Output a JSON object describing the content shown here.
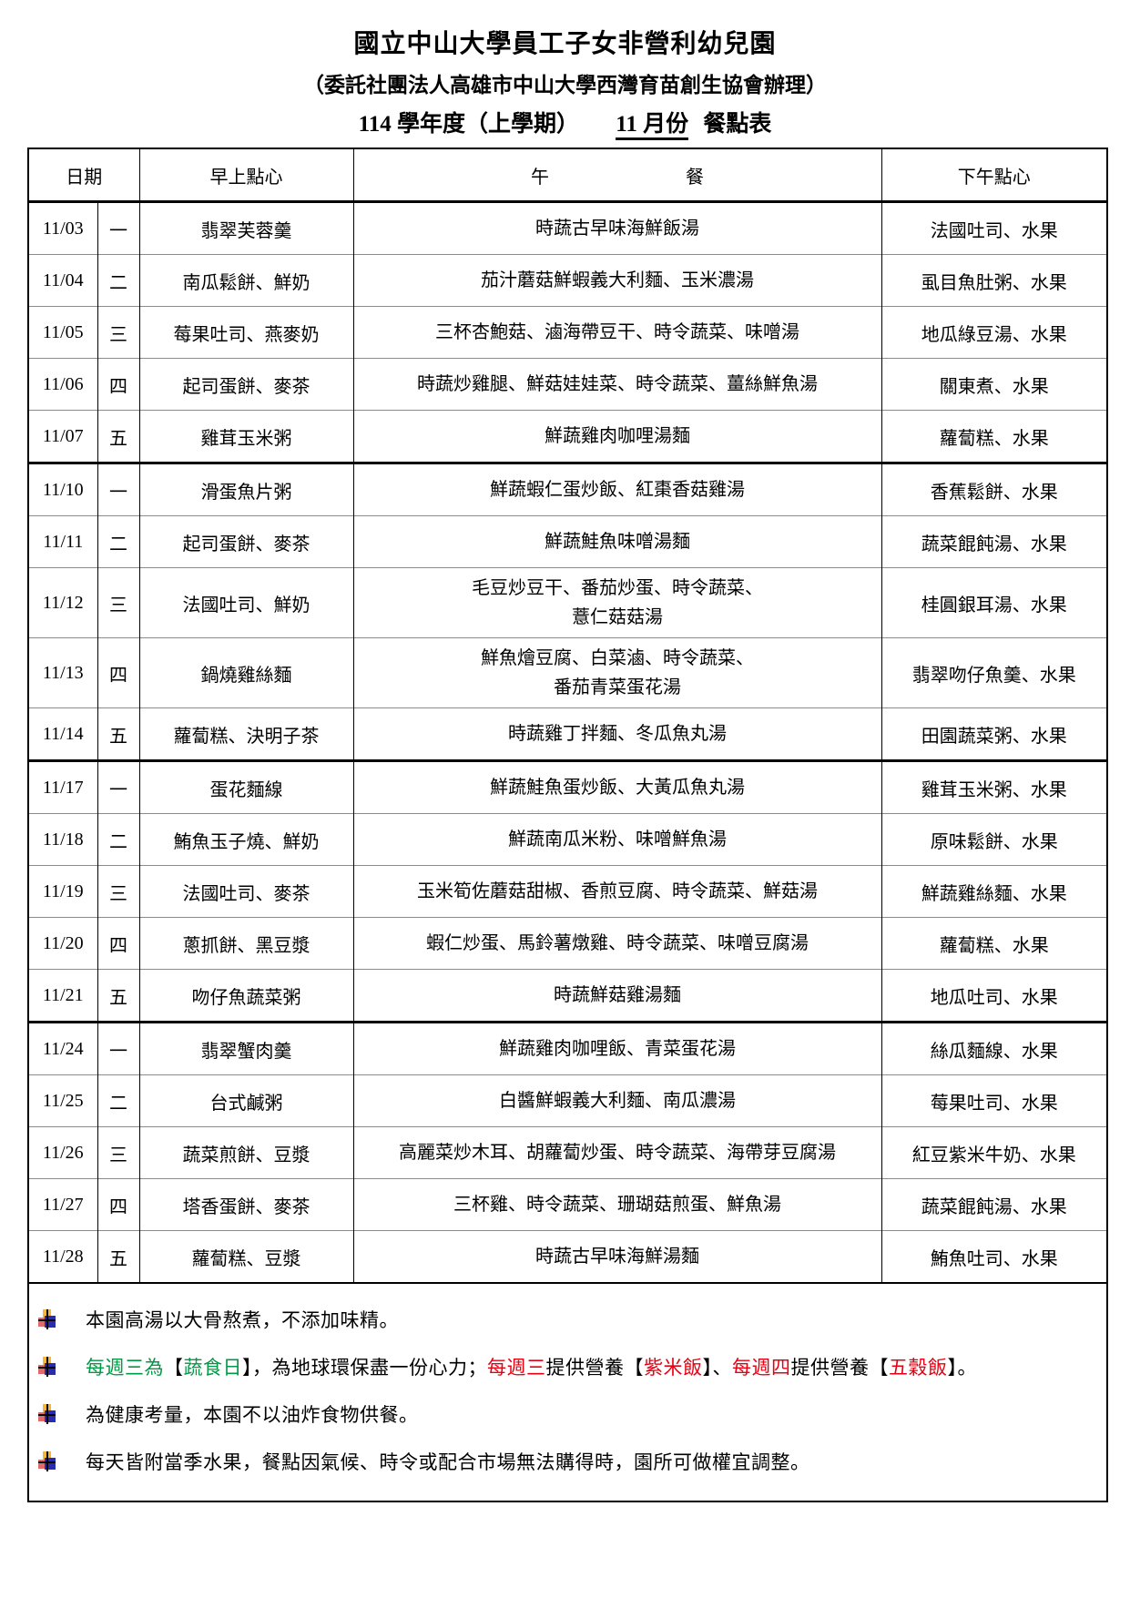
{
  "page": {
    "title": "國立中山大學員工子女非營利幼兒園",
    "subtitle": "（委託社團法人高雄市中山大學西灣育苗創生協會辦理）",
    "term": "114 學年度（上學期）",
    "month": "11 月份",
    "doc_type": "餐點表"
  },
  "colors": {
    "black": "#000000",
    "green": "#009944",
    "red": "#e60012"
  },
  "table": {
    "headers": {
      "date": "日期",
      "morning_snack": "早上點心",
      "lunch_char1": "午",
      "lunch_char2": "餐",
      "afternoon_snack": "下午點心"
    },
    "rows": [
      {
        "date": "11/03",
        "weekday": "一",
        "morning": "翡翠芙蓉羹",
        "lunch": [
          "時蔬古早味海鮮飯湯"
        ],
        "afternoon": "法國吐司、水果",
        "week_end": false
      },
      {
        "date": "11/04",
        "weekday": "二",
        "morning": "南瓜鬆餅、鮮奶",
        "lunch": [
          "茄汁蘑菇鮮蝦義大利麵、玉米濃湯"
        ],
        "afternoon": "虱目魚肚粥、水果",
        "week_end": false
      },
      {
        "date": "11/05",
        "weekday": "三",
        "morning": "莓果吐司、燕麥奶",
        "lunch": [
          "三杯杏鮑菇、滷海帶豆干、時令蔬菜、味噌湯"
        ],
        "afternoon": "地瓜綠豆湯、水果",
        "week_end": false
      },
      {
        "date": "11/06",
        "weekday": "四",
        "morning": "起司蛋餅、麥茶",
        "lunch": [
          "時蔬炒雞腿、鮮菇娃娃菜、時令蔬菜、薑絲鮮魚湯"
        ],
        "afternoon": "關東煮、水果",
        "week_end": false
      },
      {
        "date": "11/07",
        "weekday": "五",
        "morning": "雞茸玉米粥",
        "lunch": [
          "鮮蔬雞肉咖哩湯麵"
        ],
        "afternoon": "蘿蔔糕、水果",
        "week_end": true
      },
      {
        "date": "11/10",
        "weekday": "一",
        "morning": "滑蛋魚片粥",
        "lunch": [
          "鮮蔬蝦仁蛋炒飯、紅棗香菇雞湯"
        ],
        "afternoon": "香蕉鬆餅、水果",
        "week_end": false
      },
      {
        "date": "11/11",
        "weekday": "二",
        "morning": "起司蛋餅、麥茶",
        "lunch": [
          "鮮蔬鮭魚味噌湯麵"
        ],
        "afternoon": "蔬菜餛飩湯、水果",
        "week_end": false
      },
      {
        "date": "11/12",
        "weekday": "三",
        "morning": "法國吐司、鮮奶",
        "lunch": [
          "毛豆炒豆干、番茄炒蛋、時令蔬菜、",
          "薏仁菇菇湯"
        ],
        "afternoon": "桂圓銀耳湯、水果",
        "week_end": false
      },
      {
        "date": "11/13",
        "weekday": "四",
        "morning": "鍋燒雞絲麵",
        "lunch": [
          "鮮魚燴豆腐、白菜滷、時令蔬菜、",
          "番茄青菜蛋花湯"
        ],
        "afternoon": "翡翠吻仔魚羹、水果",
        "week_end": false
      },
      {
        "date": "11/14",
        "weekday": "五",
        "morning": "蘿蔔糕、決明子茶",
        "lunch": [
          "時蔬雞丁拌麵、冬瓜魚丸湯"
        ],
        "afternoon": "田園蔬菜粥、水果",
        "week_end": true
      },
      {
        "date": "11/17",
        "weekday": "一",
        "morning": "蛋花麵線",
        "lunch": [
          "鮮蔬鮭魚蛋炒飯、大黃瓜魚丸湯"
        ],
        "afternoon": "雞茸玉米粥、水果",
        "week_end": false
      },
      {
        "date": "11/18",
        "weekday": "二",
        "morning": "鮪魚玉子燒、鮮奶",
        "lunch": [
          "鮮蔬南瓜米粉、味噌鮮魚湯"
        ],
        "afternoon": "原味鬆餅、水果",
        "week_end": false
      },
      {
        "date": "11/19",
        "weekday": "三",
        "morning": "法國吐司、麥茶",
        "lunch": [
          "玉米筍佐蘑菇甜椒、香煎豆腐、時令蔬菜、鮮菇湯"
        ],
        "afternoon": "鮮蔬雞絲麵、水果",
        "week_end": false
      },
      {
        "date": "11/20",
        "weekday": "四",
        "morning": "蔥抓餅、黑豆漿",
        "lunch": [
          "蝦仁炒蛋、馬鈴薯燉雞、時令蔬菜、味噌豆腐湯"
        ],
        "afternoon": "蘿蔔糕、水果",
        "week_end": false
      },
      {
        "date": "11/21",
        "weekday": "五",
        "morning": "吻仔魚蔬菜粥",
        "lunch": [
          "時蔬鮮菇雞湯麵"
        ],
        "afternoon": "地瓜吐司、水果",
        "week_end": true
      },
      {
        "date": "11/24",
        "weekday": "一",
        "morning": "翡翠蟹肉羹",
        "lunch": [
          "鮮蔬雞肉咖哩飯、青菜蛋花湯"
        ],
        "afternoon": "絲瓜麵線、水果",
        "week_end": false
      },
      {
        "date": "11/25",
        "weekday": "二",
        "morning": "台式鹹粥",
        "lunch": [
          "白醬鮮蝦義大利麵、南瓜濃湯"
        ],
        "afternoon": "莓果吐司、水果",
        "week_end": false
      },
      {
        "date": "11/26",
        "weekday": "三",
        "morning": "蔬菜煎餅、豆漿",
        "lunch": [
          "高麗菜炒木耳、胡蘿蔔炒蛋、時令蔬菜、海帶芽豆腐湯"
        ],
        "afternoon": "紅豆紫米牛奶、水果",
        "week_end": false
      },
      {
        "date": "11/27",
        "weekday": "四",
        "morning": "塔香蛋餅、麥茶",
        "lunch": [
          "三杯雞、時令蔬菜、珊瑚菇煎蛋、鮮魚湯"
        ],
        "afternoon": "蔬菜餛飩湯、水果",
        "week_end": false
      },
      {
        "date": "11/28",
        "weekday": "五",
        "morning": "蘿蔔糕、豆漿",
        "lunch": [
          "時蔬古早味海鮮湯麵"
        ],
        "afternoon": "鮪魚吐司、水果",
        "week_end": false
      }
    ]
  },
  "notes": [
    {
      "segments": [
        {
          "text": "本園高湯以大骨熬煮，不添加味精。",
          "color": "black"
        }
      ]
    },
    {
      "segments": [
        {
          "text": "每週三為",
          "color": "green"
        },
        {
          "text": "【",
          "color": "black"
        },
        {
          "text": "蔬食日",
          "color": "green"
        },
        {
          "text": "】",
          "color": "black"
        },
        {
          "text": "，為地球環保盡一份心力；",
          "color": "black"
        },
        {
          "text": "每週三",
          "color": "red"
        },
        {
          "text": "提供營養",
          "color": "black"
        },
        {
          "text": "【",
          "color": "black"
        },
        {
          "text": "紫米飯",
          "color": "red"
        },
        {
          "text": "】",
          "color": "black"
        },
        {
          "text": "、",
          "color": "black"
        },
        {
          "text": "每週四",
          "color": "red"
        },
        {
          "text": "提供營養",
          "color": "black"
        },
        {
          "text": "【",
          "color": "black"
        },
        {
          "text": "五穀飯",
          "color": "red"
        },
        {
          "text": "】",
          "color": "black"
        },
        {
          "text": "。",
          "color": "black"
        }
      ]
    },
    {
      "segments": [
        {
          "text": "為健康考量，本園不以油炸食物供餐。",
          "color": "black"
        }
      ]
    },
    {
      "segments": [
        {
          "text": "每天皆附當季水果，餐點因氣候、時令或配合市場無法購得時，園所可做權宜調整。",
          "color": "black"
        }
      ]
    }
  ]
}
